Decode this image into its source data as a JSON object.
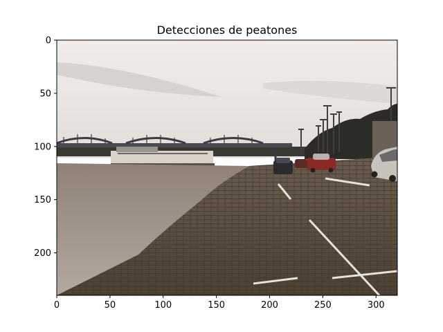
{
  "chart_data": {
    "type": "image",
    "title": "Detecciones de peatones",
    "xlabel": "",
    "ylabel": "",
    "xlim": [
      0,
      320
    ],
    "ylim": [
      240,
      0
    ],
    "x_ticks": [
      0,
      50,
      100,
      150,
      200,
      250,
      300
    ],
    "y_ticks": [
      0,
      50,
      100,
      150,
      200
    ],
    "grid": false,
    "image_content": "riverfront-cobblestone-levee-with-bridges-and-parked-cars",
    "detections": []
  }
}
